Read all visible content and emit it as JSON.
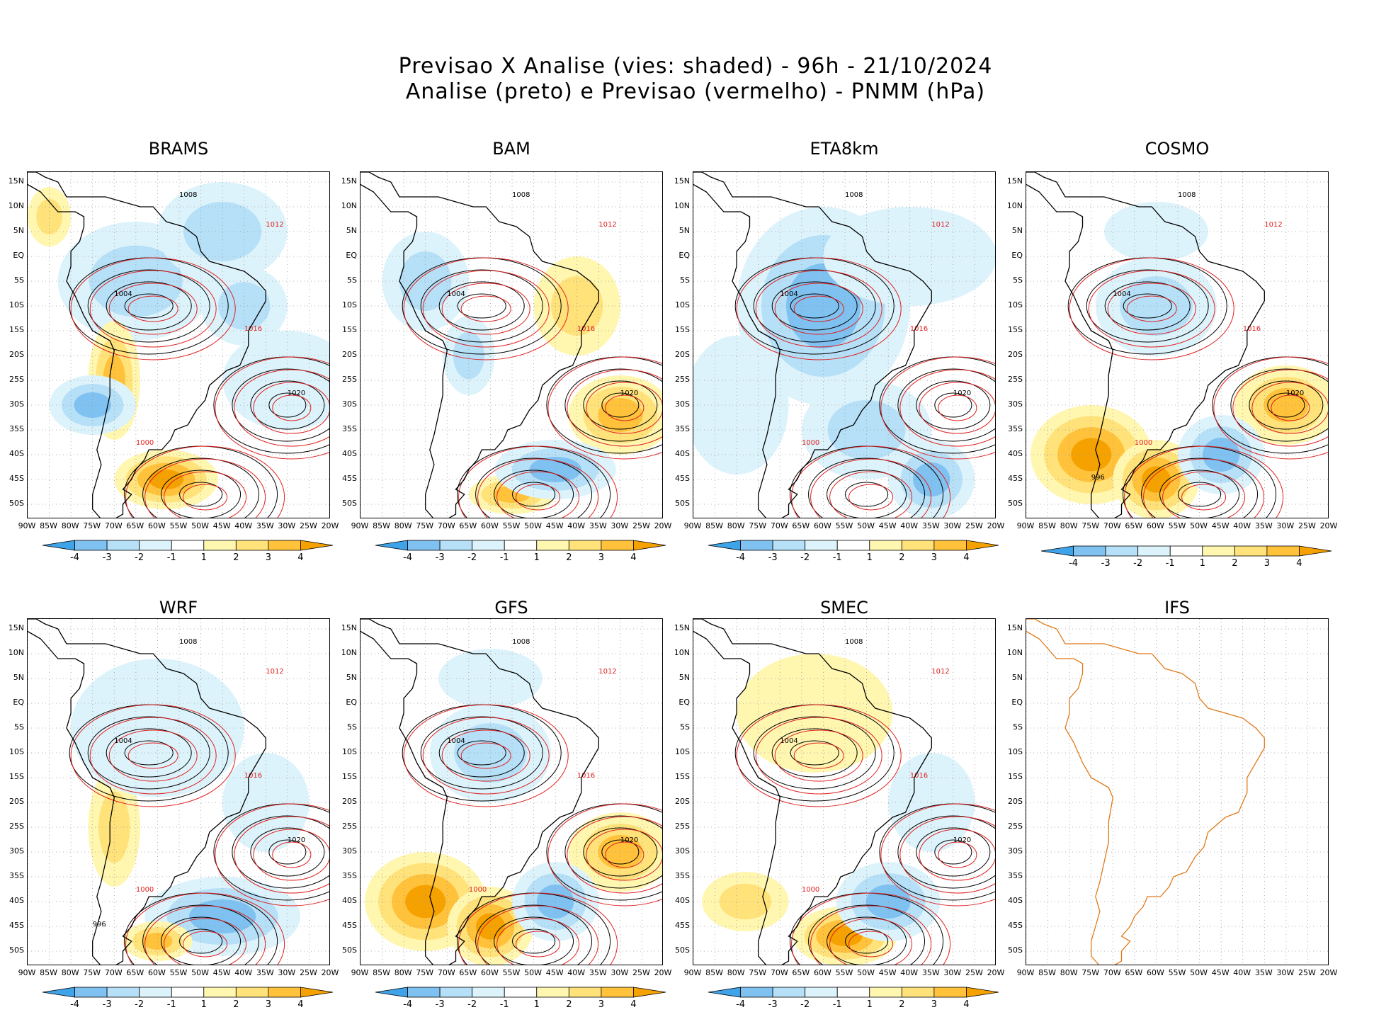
{
  "title_line1": "Previsao X Analise (vies: shaded) - 96h - 21/10/2024",
  "title_line2": "Analise (preto) e Previsao (vermelho) - PNMM (hPa)",
  "colors": {
    "neg4": "#3fa3ea",
    "neg3": "#7fc1f0",
    "neg2": "#b6e0f7",
    "neg1": "#ddf3fb",
    "zero": "#ffffff",
    "pos1": "#fff6b0",
    "pos2": "#ffe27a",
    "pos3": "#ffc23a",
    "pos4": "#f5a100",
    "analysis_line": "#000000",
    "forecast_line": "#e02020",
    "coast_ifs": "#e07a1a"
  },
  "chart_data": {
    "type": "heatmap",
    "title": "Previsao X Analise (vies: shaded) - 96h - 21/10/2024",
    "subtitle": "Analise (preto) e Previsao (vermelho) - PNMM (hPa)",
    "lon_ticks": [
      "90W",
      "85W",
      "80W",
      "75W",
      "70W",
      "65W",
      "60W",
      "55W",
      "50W",
      "45W",
      "40W",
      "35W",
      "30W",
      "25W",
      "20W"
    ],
    "lat_ticks": [
      "15N",
      "10N",
      "5N",
      "EQ",
      "5S",
      "10S",
      "15S",
      "20S",
      "25S",
      "30S",
      "35S",
      "40S",
      "45S",
      "50S"
    ],
    "xlim": [
      -90,
      -20
    ],
    "ylim": [
      -53,
      17
    ],
    "colorbar_labels": [
      "-4",
      "-3",
      "-2",
      "-1",
      "1",
      "2",
      "3",
      "4"
    ],
    "colorbar_levels": [
      -4,
      -3,
      -2,
      -1,
      0,
      1,
      2,
      3,
      4
    ],
    "panels": [
      {
        "name": "BRAMS",
        "has_data": true,
        "bias_pattern": "mixed",
        "contour_labels": [
          "1008",
          "1012",
          "1004",
          "1016",
          "1020",
          "1000"
        ]
      },
      {
        "name": "BAM",
        "has_data": true,
        "bias_pattern": "positive-east",
        "contour_labels": [
          "1008",
          "1012",
          "1004",
          "1016",
          "1020"
        ]
      },
      {
        "name": "ETA8km",
        "has_data": true,
        "bias_pattern": "negative",
        "contour_labels": [
          "1008",
          "1012",
          "1004",
          "1016",
          "1020",
          "1000"
        ]
      },
      {
        "name": "COSMO",
        "has_data": true,
        "bias_pattern": "positive-south",
        "contour_labels": [
          "1008",
          "1012",
          "1004",
          "1016",
          "1020",
          "1000",
          "996"
        ]
      },
      {
        "name": "WRF",
        "has_data": true,
        "bias_pattern": "negative-south",
        "contour_labels": [
          "1008",
          "1012",
          "1004",
          "1016",
          "1020",
          "1000",
          "996"
        ]
      },
      {
        "name": "GFS",
        "has_data": true,
        "bias_pattern": "positive-south",
        "contour_labels": [
          "1008",
          "1012",
          "1004",
          "1016",
          "1020",
          "1000"
        ]
      },
      {
        "name": "SMEC",
        "has_data": true,
        "bias_pattern": "positive-north",
        "contour_labels": [
          "1008",
          "1012",
          "1004",
          "1016",
          "1020",
          "1000"
        ]
      },
      {
        "name": "IFS",
        "has_data": false,
        "bias_pattern": "none",
        "contour_labels": []
      }
    ]
  }
}
